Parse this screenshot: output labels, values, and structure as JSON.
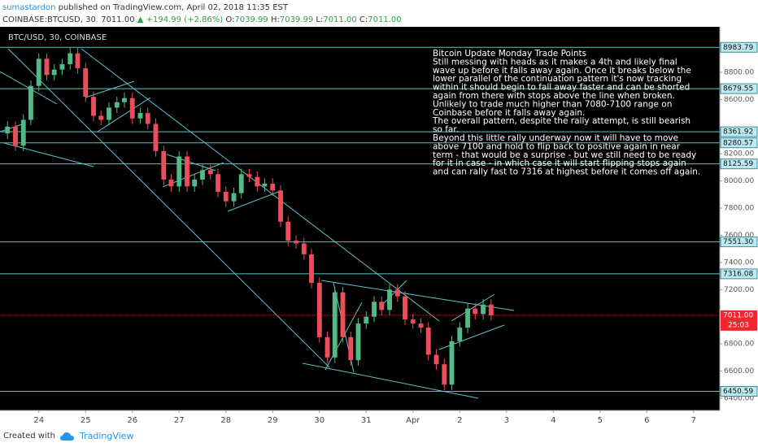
{
  "header": {
    "author": "sumastardon",
    "published": "published on TradingView.com, April 02, 2018 11:35 EST",
    "symbol": "COINBASE:BTCUSD, 30",
    "price": "7011.00",
    "change": "▲ +194.99 (+2.86%)",
    "ohlc": [
      {
        "key": "O:",
        "value": "7039.99"
      },
      {
        "key": "H:",
        "value": "7039.99"
      },
      {
        "key": "L:",
        "value": "7011.00"
      },
      {
        "key": "C:",
        "value": "7011.00"
      }
    ]
  },
  "footer": {
    "created": "Created with",
    "brand": "TradingView"
  },
  "chart_data": {
    "type": "candlestick",
    "title": "BTC/USD, 30, COINBASE",
    "annotation": [
      "Bitcoin Update  Monday Trade Points",
      "Still messing with heads as it makes a 4th and likely final",
      "wave up before it falls away again. Once it breaks below the",
      "lower parallel of the continuation pattern it's now tracking",
      "within it  should begin to fall away faster and can be shorted",
      "again from there with stops above the line when broken.",
      "Unlikely to trade much higher than 7080-7100 range on",
      "Coinbase before it falls away again.",
      "The overall pattern, despite the rally attempt, is still bearish",
      "so far.",
      "Beyond this little rally underway now it will have  to move",
      "above 7100 and hold to flip back to positive again in near",
      "term - that would be a surprise - but we still need to be ready",
      "for it in case -  in which case it will start flipping stops again",
      "and can rally fast to 7316 at highest before it comes off again."
    ],
    "up_color": "#53b987",
    "down_color": "#eb4d5c",
    "level_color": "#5cc5c5",
    "xlim": [
      -0.83,
      14.56
    ],
    "ylim": [
      6310,
      9135
    ],
    "xticks": [
      {
        "value": 0,
        "label": "24"
      },
      {
        "value": 1,
        "label": "25"
      },
      {
        "value": 2,
        "label": "26"
      },
      {
        "value": 3,
        "label": "27"
      },
      {
        "value": 4,
        "label": "28"
      },
      {
        "value": 5,
        "label": "29"
      },
      {
        "value": 6,
        "label": "30"
      },
      {
        "value": 7,
        "label": "31"
      },
      {
        "value": 8,
        "label": "Apr"
      },
      {
        "value": 9,
        "label": "2"
      },
      {
        "value": 10,
        "label": "3"
      },
      {
        "value": 11,
        "label": "4"
      },
      {
        "value": 12,
        "label": "5"
      },
      {
        "value": 13,
        "label": "6"
      },
      {
        "value": 14,
        "label": "7"
      }
    ],
    "yticks": [
      {
        "value": 8800,
        "label": "8800.00"
      },
      {
        "value": 8600,
        "label": "8600.00"
      },
      {
        "value": 8200,
        "label": "8200.00"
      },
      {
        "value": 8000,
        "label": "8000.00"
      },
      {
        "value": 7800,
        "label": "7800.00"
      },
      {
        "value": 7600,
        "label": "7600.00"
      },
      {
        "value": 7400,
        "label": "7400.00"
      },
      {
        "value": 7200,
        "label": "7200.00"
      },
      {
        "value": 6800,
        "label": "6800.00"
      },
      {
        "value": 6600,
        "label": "6600.00"
      },
      {
        "value": 6400,
        "label": "6400.00"
      }
    ],
    "levels": [
      8983.79,
      8679.55,
      8361.92,
      8280.57,
      8125.59,
      {
        "value": 7551.3,
        "label": "7551.30"
      },
      7316.08,
      6450.59
    ],
    "current_price": {
      "value": 7011,
      "label": "7011.00",
      "color": "#f2262f"
    },
    "countdown": "25:03",
    "x": [
      -0.67,
      -0.5,
      -0.33,
      -0.17,
      0,
      0.17,
      0.33,
      0.5,
      0.67,
      0.83,
      1,
      1.17,
      1.33,
      1.5,
      1.67,
      1.83,
      2,
      2.17,
      2.33,
      2.5,
      2.67,
      2.83,
      3,
      3.17,
      3.33,
      3.5,
      3.67,
      3.83,
      4,
      4.17,
      4.33,
      4.5,
      4.67,
      4.83,
      5,
      5.17,
      5.33,
      5.5,
      5.67,
      5.83,
      6,
      6.17,
      6.33,
      6.5,
      6.67,
      6.83,
      7,
      7.17,
      7.33,
      7.5,
      7.67,
      7.83,
      8,
      8.17,
      8.33,
      8.5,
      8.67,
      8.83,
      9,
      9.17,
      9.33,
      9.5,
      9.67
    ],
    "open": [
      8350,
      8400,
      8260,
      8450,
      8700,
      8900,
      8780,
      8820,
      8860,
      8940,
      8830,
      8620,
      8480,
      8450,
      8540,
      8580,
      8610,
      8460,
      8500,
      8420,
      8220,
      8010,
      7960,
      8180,
      7960,
      8010,
      8080,
      8050,
      7920,
      7850,
      7910,
      8050,
      8030,
      7960,
      7980,
      7930,
      7700,
      7560,
      7540,
      7460,
      7250,
      6850,
      6700,
      7180,
      6850,
      6680,
      6950,
      7000,
      7110,
      7050,
      7200,
      7150,
      6980,
      6950,
      6920,
      6720,
      6650,
      6500,
      6820,
      6920,
      7060,
      7020,
      7090
    ],
    "high": [
      8440,
      8440,
      8490,
      8740,
      8940,
      8940,
      8860,
      8900,
      8980,
      8980,
      8870,
      8660,
      8520,
      8580,
      8620,
      8650,
      8650,
      8540,
      8540,
      8460,
      8260,
      8050,
      8220,
      8220,
      8050,
      8120,
      8120,
      8090,
      7960,
      7950,
      8090,
      8090,
      8070,
      8020,
      8020,
      7970,
      7740,
      7600,
      7580,
      7500,
      7290,
      6890,
      7220,
      7220,
      6890,
      6990,
      7040,
      7150,
      7150,
      7240,
      7240,
      7190,
      7020,
      6990,
      6960,
      6760,
      6690,
      6860,
      6960,
      7100,
      7100,
      7130,
      7130
    ],
    "low": [
      8310,
      8220,
      8220,
      8410,
      8660,
      8740,
      8740,
      8780,
      8820,
      8790,
      8580,
      8440,
      8410,
      8410,
      8500,
      8540,
      8420,
      8420,
      8380,
      8180,
      7970,
      7920,
      7920,
      7920,
      7920,
      7970,
      8010,
      7880,
      7810,
      7810,
      7870,
      7990,
      7920,
      7920,
      7890,
      7660,
      7520,
      7500,
      7420,
      7210,
      6810,
      6660,
      6660,
      6810,
      6640,
      6640,
      6910,
      6960,
      7010,
      7010,
      7110,
      6940,
      6910,
      6880,
      6680,
      6610,
      6460,
      6460,
      6780,
      6880,
      6980,
      6980,
      6971
    ],
    "close": [
      8400,
      8260,
      8450,
      8700,
      8900,
      8780,
      8820,
      8860,
      8940,
      8830,
      8620,
      8480,
      8450,
      8540,
      8580,
      8610,
      8460,
      8500,
      8420,
      8220,
      8010,
      7960,
      8180,
      7960,
      8010,
      8080,
      8050,
      7920,
      7850,
      7910,
      8050,
      8030,
      7960,
      7980,
      7930,
      7700,
      7560,
      7540,
      7460,
      7250,
      6850,
      6700,
      7180,
      6850,
      6680,
      6950,
      7000,
      7110,
      7050,
      7200,
      7150,
      6980,
      6950,
      6920,
      6720,
      6650,
      6500,
      6820,
      6920,
      7060,
      7020,
      7090,
      7011
    ]
  }
}
